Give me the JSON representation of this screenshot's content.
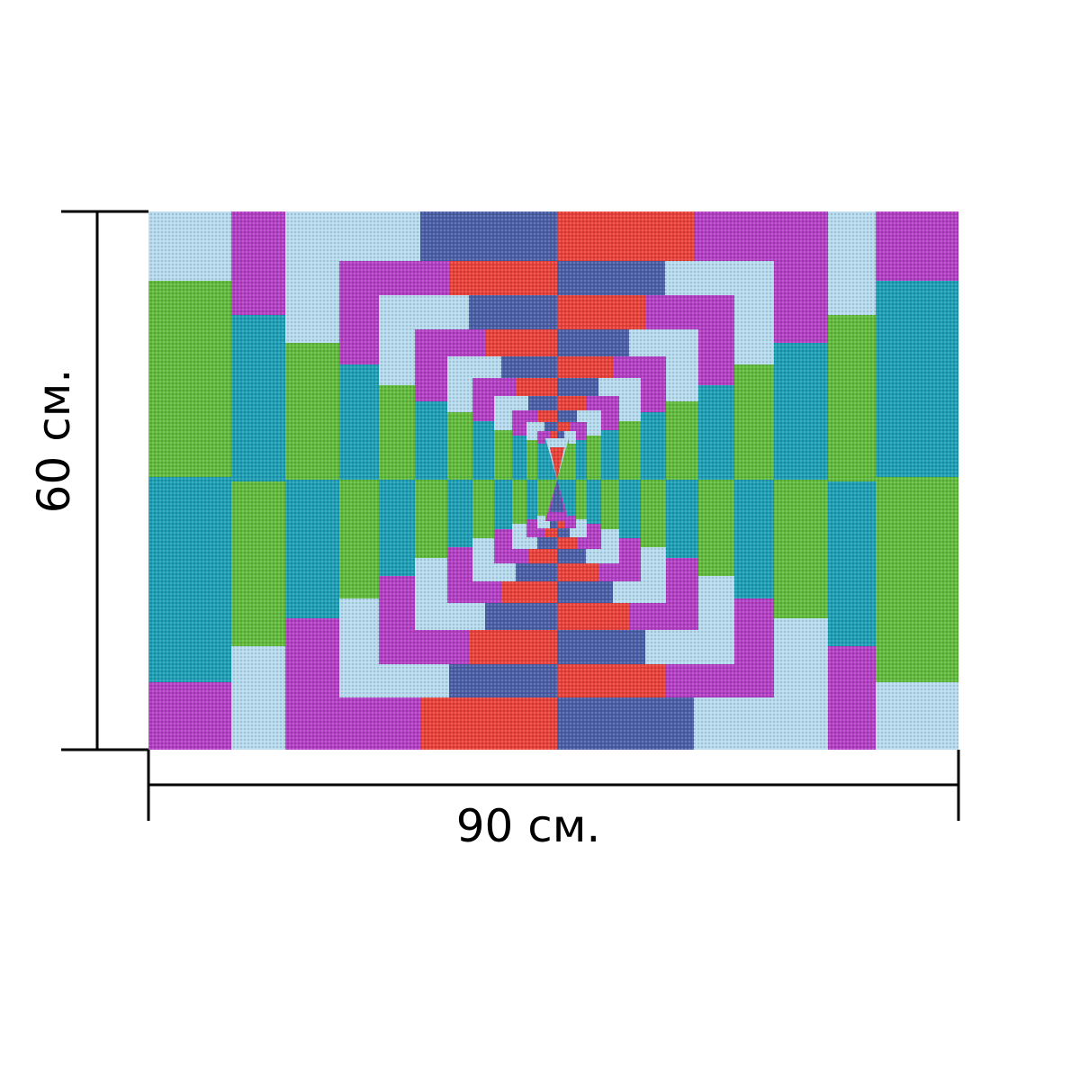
{
  "dimensions": {
    "width_label": "90 см.",
    "height_label": "60 см."
  },
  "colors": {
    "light_blue": "#b7dcef",
    "magenta": "#b33fc4",
    "navy": "#4a5fa6",
    "red": "#e8423a",
    "green": "#62bb3c",
    "teal": "#1f9fb6",
    "line": "#000000"
  }
}
